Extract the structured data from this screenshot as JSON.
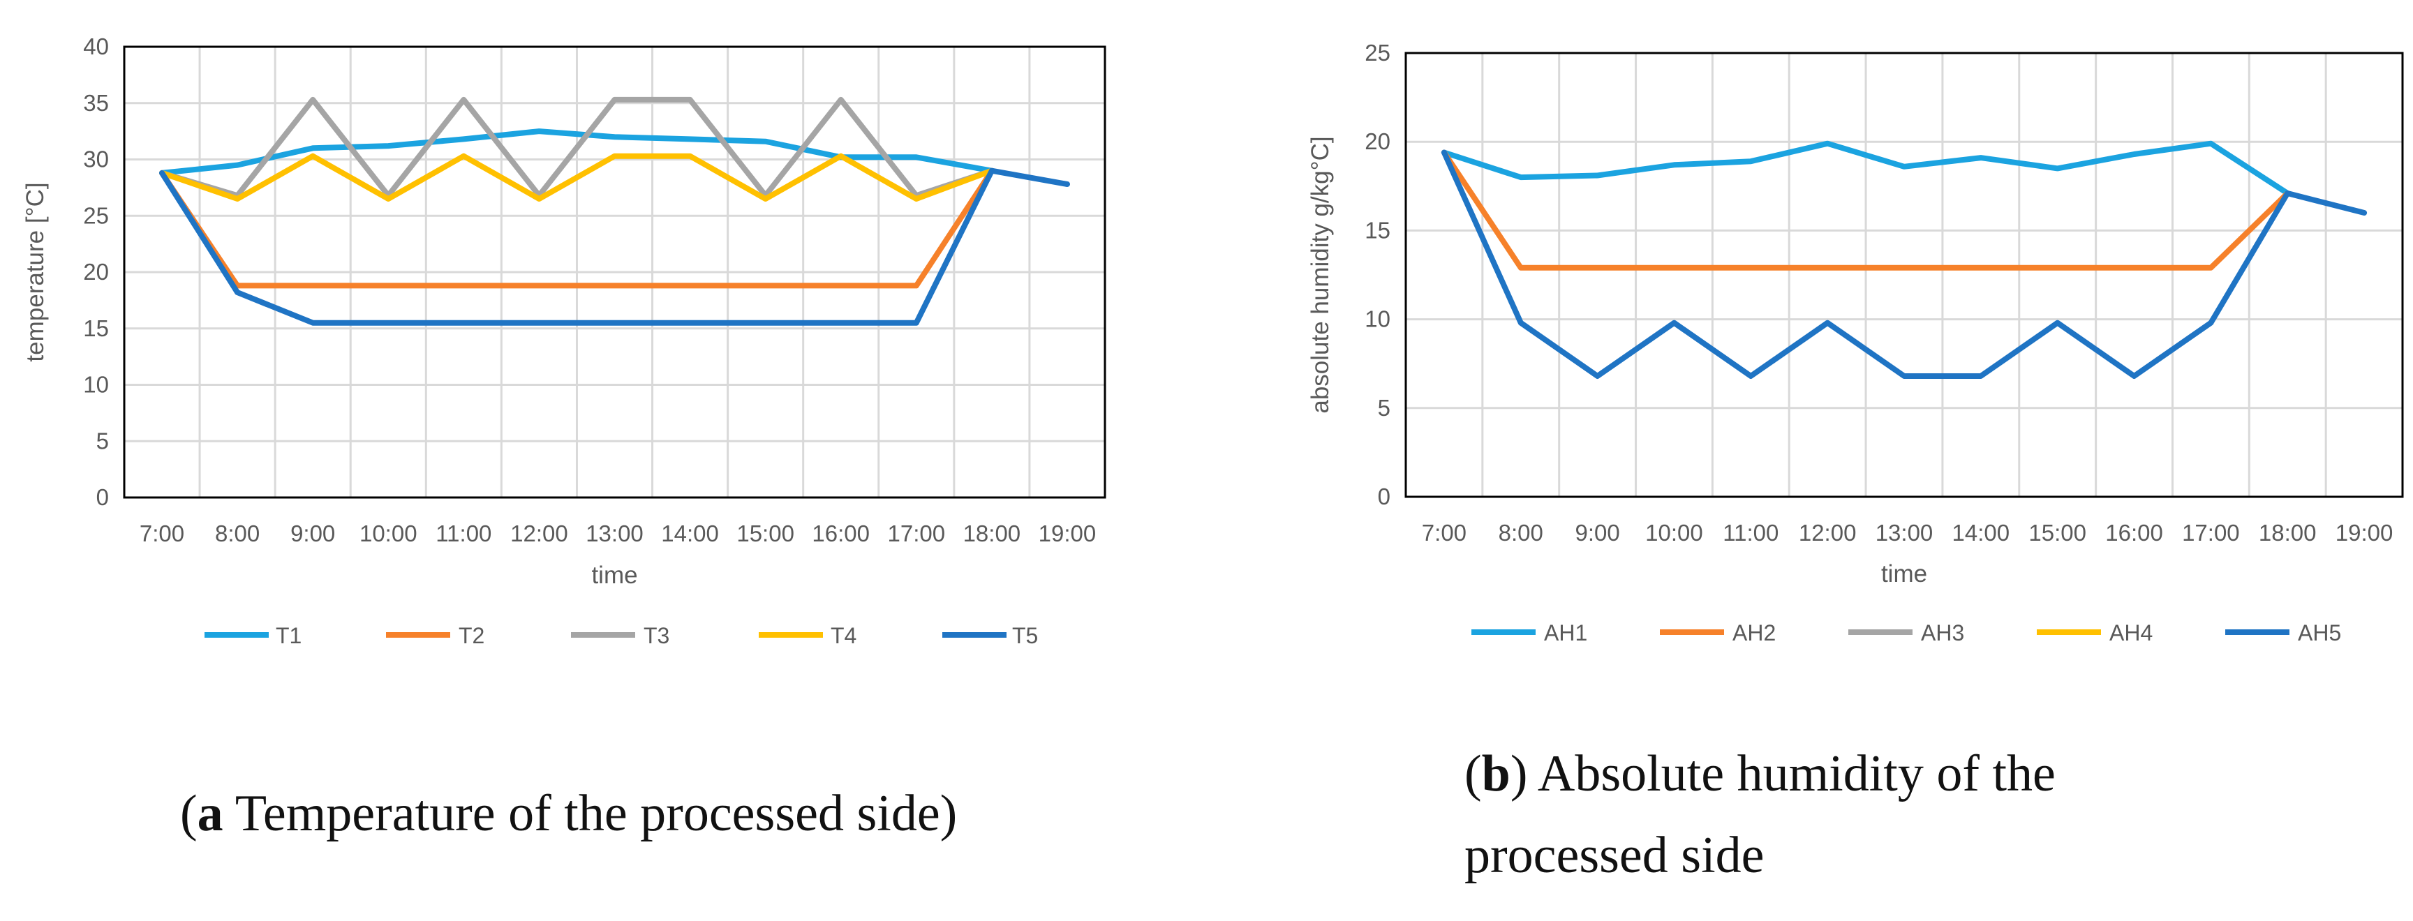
{
  "chart_data": [
    {
      "type": "line",
      "x": [
        "7:00",
        "8:00",
        "9:00",
        "10:00",
        "11:00",
        "12:00",
        "13:00",
        "14:00",
        "15:00",
        "16:00",
        "17:00",
        "18:00",
        "19:00"
      ],
      "xlabel": "time",
      "ylabel": "temperature [°C]",
      "ylim": [
        0,
        40
      ],
      "yticks": [
        0,
        5,
        10,
        15,
        20,
        25,
        30,
        35,
        40
      ],
      "grid": true,
      "legend_position": "bottom",
      "series": [
        {
          "name": "T1",
          "color": "#1BA3E0",
          "values": [
            28.8,
            29.5,
            31.0,
            31.2,
            31.8,
            32.5,
            32.0,
            31.8,
            31.6,
            30.2,
            30.2,
            29.0,
            null
          ]
        },
        {
          "name": "T2",
          "color": "#F6812A",
          "values": [
            28.8,
            18.8,
            18.8,
            18.8,
            18.8,
            18.8,
            18.8,
            18.8,
            18.8,
            18.8,
            18.8,
            29.0,
            null
          ]
        },
        {
          "name": "T3",
          "color": "#A5A5A5",
          "values": [
            28.8,
            26.8,
            35.3,
            26.8,
            35.3,
            26.8,
            35.3,
            35.3,
            26.8,
            35.3,
            26.8,
            29.0,
            null
          ]
        },
        {
          "name": "T4",
          "color": "#FFC000",
          "values": [
            28.8,
            26.5,
            30.3,
            26.5,
            30.3,
            26.5,
            30.3,
            30.3,
            26.5,
            30.3,
            26.5,
            29.0,
            null
          ]
        },
        {
          "name": "T5",
          "color": "#1F74C4",
          "values": [
            28.8,
            18.2,
            15.5,
            15.5,
            15.5,
            15.5,
            15.5,
            15.5,
            15.5,
            15.5,
            15.5,
            29.0,
            27.8
          ]
        }
      ]
    },
    {
      "type": "line",
      "x": [
        "7:00",
        "8:00",
        "9:00",
        "10:00",
        "11:00",
        "12:00",
        "13:00",
        "14:00",
        "15:00",
        "16:00",
        "17:00",
        "18:00",
        "19:00"
      ],
      "xlabel": "time",
      "ylabel": "absolute humidity g/kg°C]",
      "ylim": [
        0,
        25
      ],
      "yticks": [
        0,
        5,
        10,
        15,
        20,
        25
      ],
      "grid": true,
      "legend_position": "bottom",
      "series": [
        {
          "name": "AH1",
          "color": "#1BA3E0",
          "values": [
            19.4,
            18.0,
            18.1,
            18.7,
            18.9,
            19.9,
            18.6,
            19.1,
            18.5,
            19.3,
            19.9,
            17.1,
            null
          ]
        },
        {
          "name": "AH2",
          "color": "#F6812A",
          "values": [
            19.4,
            12.9,
            12.9,
            12.9,
            12.9,
            12.9,
            12.9,
            12.9,
            12.9,
            12.9,
            12.9,
            17.1,
            null
          ]
        },
        {
          "name": "AH3",
          "color": "#A5A5A5",
          "values": [
            null,
            null,
            null,
            null,
            null,
            null,
            null,
            null,
            null,
            null,
            null,
            null,
            null
          ]
        },
        {
          "name": "AH4",
          "color": "#FFC000",
          "values": [
            null,
            null,
            null,
            null,
            null,
            null,
            null,
            null,
            null,
            null,
            null,
            null,
            null
          ]
        },
        {
          "name": "AH5",
          "color": "#1F74C4",
          "values": [
            19.4,
            9.8,
            6.8,
            9.8,
            6.8,
            9.8,
            6.8,
            6.8,
            9.8,
            6.8,
            9.8,
            17.1,
            16.0
          ]
        }
      ]
    }
  ],
  "captions": {
    "a": {
      "letter": "a",
      "text": " Temperature of the processed side"
    },
    "b": {
      "letter": "b",
      "line1": " Absolute humidity of the",
      "line2": "processed side"
    }
  }
}
